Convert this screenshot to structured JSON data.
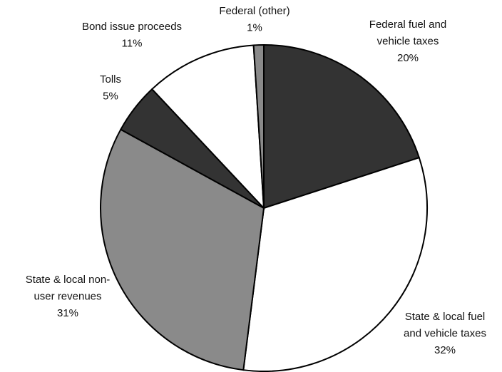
{
  "chart_data": {
    "type": "pie",
    "categories": [
      [
        "Federal fuel and",
        "vehicle taxes"
      ],
      [
        "State & local fuel",
        "and vehicle taxes"
      ],
      [
        "State & local non-",
        "user revenues"
      ],
      [
        "Tolls"
      ],
      [
        "Bond issue proceeds"
      ],
      [
        "Federal (other)"
      ]
    ],
    "values": [
      20,
      32,
      31,
      5,
      11,
      1
    ],
    "value_labels": [
      "20%",
      "32%",
      "31%",
      "5%",
      "11%",
      "1%"
    ],
    "colors": [
      "#333333",
      "#ffffff",
      "#8a8a8a",
      "#333333",
      "#ffffff",
      "#8a8a8a"
    ]
  }
}
